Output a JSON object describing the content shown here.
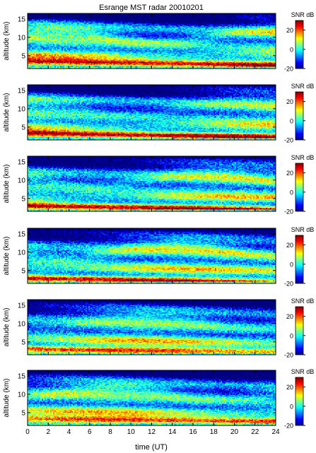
{
  "chart_data": {
    "type": "heatmap",
    "title": "Esrange MST radar 20010201",
    "xlabel": "time (UT)",
    "ylabel": "altitude (km)",
    "xlim": [
      0,
      24
    ],
    "ylim": [
      1.5,
      16.5
    ],
    "x_ticks": [
      0,
      2,
      4,
      6,
      8,
      10,
      12,
      14,
      16,
      18,
      20,
      22,
      24
    ],
    "y_ticks": [
      5,
      10,
      15
    ],
    "colorbar": {
      "label": "SNR dB",
      "range": [
        -20,
        30
      ],
      "ticks": [
        -20,
        0,
        20
      ],
      "colormap": "jet"
    },
    "panels": [
      {
        "panel": 1,
        "structure": "strong echo layer about 2–4 km, descending slightly through the day; weaker layers near 8–12 km; low SNR above 13 km"
      },
      {
        "panel": 2,
        "structure": "strong echo layer about 2–5 km; enhanced layer near 8–12 km in the morning hours"
      },
      {
        "panel": 3,
        "structure": "echo layer about 2–4 km; weaker and patchier upper layers; low SNR above 12 km"
      },
      {
        "panel": 4,
        "structure": "strong echo layer about 2–5 km; layered structure near 8–13 km"
      },
      {
        "panel": 5,
        "structure": "echo layer about 2–4 km, strongest near 20–24 UT; weak upper layers"
      },
      {
        "panel": 6,
        "structure": "echo layer about 2–4 km; moderate layers near 8–12 km; low SNR above 13 km"
      }
    ]
  }
}
